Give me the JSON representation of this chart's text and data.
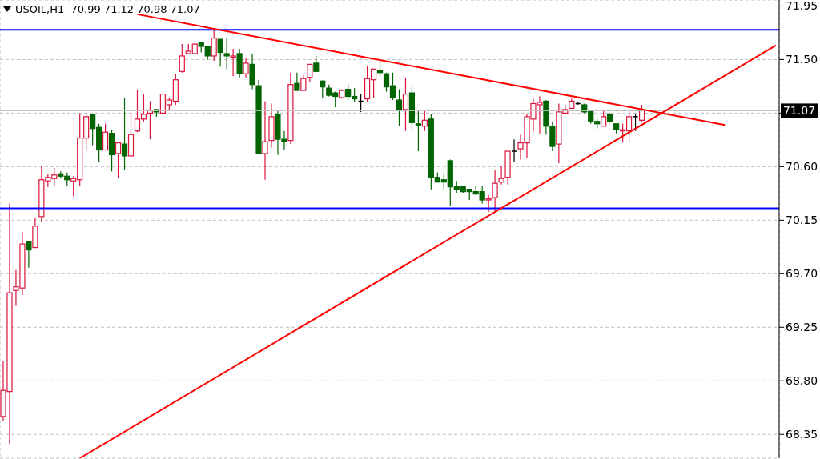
{
  "chart_data": {
    "type": "candlestick",
    "title": "USOIL,H1  70.99 71.12 70.98 71.07",
    "categories": [
      null,
      null,
      null,
      null,
      null,
      null,
      null,
      null,
      null,
      null,
      null,
      null,
      null,
      null,
      null,
      null,
      null,
      null,
      null,
      null,
      null,
      null,
      null,
      null,
      null,
      null,
      null,
      null,
      null,
      null,
      null,
      null,
      null,
      null,
      null,
      null,
      null,
      null,
      null,
      null,
      null,
      null,
      null,
      null,
      null,
      null,
      null,
      null,
      null,
      null,
      null,
      null,
      null,
      null,
      null,
      null,
      null,
      null,
      null,
      null,
      null,
      null,
      null,
      null,
      null,
      null,
      null,
      null,
      null,
      null,
      null,
      null,
      null,
      null,
      null,
      null,
      null,
      null,
      null,
      null,
      null,
      null,
      null,
      null,
      null,
      null,
      null,
      null,
      null,
      null,
      null,
      null,
      null,
      null,
      null,
      null,
      null,
      null,
      null,
      null,
      null,
      null,
      null,
      null,
      null,
      null,
      null,
      null,
      null,
      null,
      null,
      null,
      null,
      null,
      null,
      null,
      null,
      null,
      null,
      null,
      null,
      null
    ],
    "ohlc": [
      [
        68.5,
        68.97,
        68.46,
        68.72
      ],
      [
        68.71,
        70.29,
        68.27,
        69.54
      ],
      [
        69.56,
        69.73,
        69.43,
        69.59
      ],
      [
        69.58,
        70.05,
        69.52,
        69.95
      ],
      [
        69.97,
        69.97,
        69.75,
        69.9
      ],
      [
        69.92,
        70.17,
        69.92,
        70.1
      ],
      [
        70.18,
        70.6,
        70.14,
        70.49
      ],
      [
        70.48,
        70.54,
        70.43,
        70.51
      ],
      [
        70.5,
        70.59,
        70.44,
        70.53
      ],
      [
        70.54,
        70.56,
        70.5,
        70.52
      ],
      [
        70.52,
        70.55,
        70.44,
        70.49
      ],
      [
        70.48,
        70.52,
        70.35,
        70.5
      ],
      [
        70.49,
        71.05,
        70.44,
        70.84
      ],
      [
        70.84,
        71.04,
        70.74,
        71.02
      ],
      [
        71.04,
        71.04,
        70.78,
        70.92
      ],
      [
        70.93,
        70.96,
        70.64,
        70.74
      ],
      [
        70.74,
        70.96,
        70.74,
        70.89
      ],
      [
        70.88,
        70.91,
        70.56,
        70.7
      ],
      [
        70.71,
        70.81,
        70.5,
        70.8
      ],
      [
        70.79,
        71.18,
        70.57,
        70.69
      ],
      [
        70.69,
        71.04,
        70.69,
        70.87
      ],
      [
        70.9,
        71.25,
        70.89,
        71.0
      ],
      [
        71.0,
        71.21,
        70.98,
        71.04
      ],
      [
        71.05,
        71.15,
        70.83,
        71.07
      ],
      [
        71.08,
        71.08,
        71.02,
        71.06
      ],
      [
        71.05,
        71.22,
        71.05,
        71.21
      ],
      [
        71.12,
        71.18,
        71.08,
        71.16
      ],
      [
        71.15,
        71.38,
        71.12,
        71.33
      ],
      [
        71.4,
        71.63,
        71.39,
        71.53
      ],
      [
        71.55,
        71.63,
        71.55,
        71.57
      ],
      [
        71.55,
        71.64,
        71.55,
        71.63
      ],
      [
        71.64,
        71.65,
        71.56,
        71.61
      ],
      [
        71.61,
        71.61,
        71.5,
        71.53
      ],
      [
        71.53,
        71.76,
        71.49,
        71.68
      ],
      [
        71.67,
        71.67,
        71.44,
        71.56
      ],
      [
        71.55,
        71.68,
        71.42,
        71.53
      ],
      [
        71.52,
        71.59,
        71.36,
        71.53
      ],
      [
        71.55,
        71.59,
        71.35,
        71.38
      ],
      [
        71.38,
        71.51,
        71.35,
        71.47
      ],
      [
        71.46,
        71.55,
        71.25,
        71.29
      ],
      [
        71.28,
        71.33,
        70.71,
        70.71
      ],
      [
        70.71,
        71.15,
        70.49,
        70.81
      ],
      [
        70.82,
        71.13,
        70.76,
        71.02
      ],
      [
        71.04,
        71.07,
        70.7,
        70.83
      ],
      [
        70.83,
        70.9,
        70.74,
        70.81
      ],
      [
        70.82,
        71.39,
        70.79,
        71.29
      ],
      [
        71.3,
        71.39,
        71.24,
        71.24
      ],
      [
        71.24,
        71.37,
        71.24,
        71.34
      ],
      [
        71.35,
        71.46,
        71.31,
        71.46
      ],
      [
        71.47,
        71.53,
        71.4,
        71.4
      ],
      [
        71.32,
        71.32,
        71.18,
        71.27
      ],
      [
        71.26,
        71.29,
        71.19,
        71.2
      ],
      [
        71.22,
        71.23,
        71.1,
        71.19
      ],
      [
        71.18,
        71.25,
        71.17,
        71.24
      ],
      [
        71.25,
        71.29,
        71.16,
        71.19
      ],
      [
        71.19,
        71.26,
        71.14,
        71.17
      ],
      [
        71.15,
        71.21,
        71.06,
        71.15
      ],
      [
        71.17,
        71.45,
        71.14,
        71.34
      ],
      [
        71.33,
        71.42,
        71.18,
        71.42
      ],
      [
        71.41,
        71.5,
        71.36,
        71.39
      ],
      [
        71.38,
        71.39,
        71.23,
        71.27
      ],
      [
        71.28,
        71.39,
        71.16,
        71.18
      ],
      [
        71.16,
        71.25,
        70.94,
        71.07
      ],
      [
        71.08,
        71.35,
        70.9,
        71.21
      ],
      [
        71.22,
        71.27,
        70.9,
        70.97
      ],
      [
        70.96,
        71.07,
        70.73,
        70.95
      ],
      [
        70.94,
        71.07,
        70.9,
        70.99
      ],
      [
        71.0,
        71.04,
        70.41,
        70.51
      ],
      [
        70.51,
        70.55,
        70.47,
        70.47
      ],
      [
        70.49,
        70.54,
        70.41,
        70.47
      ],
      [
        70.65,
        70.66,
        70.27,
        70.43
      ],
      [
        70.43,
        70.48,
        70.38,
        70.41
      ],
      [
        70.43,
        70.43,
        70.38,
        70.39
      ],
      [
        70.41,
        70.41,
        70.32,
        70.39
      ],
      [
        70.39,
        70.44,
        70.36,
        70.37
      ],
      [
        70.39,
        70.44,
        70.29,
        70.32
      ],
      [
        70.32,
        70.36,
        70.22,
        70.33
      ],
      [
        70.34,
        70.57,
        70.22,
        70.46
      ],
      [
        70.47,
        70.61,
        70.45,
        70.5
      ],
      [
        70.51,
        70.73,
        70.45,
        70.73
      ],
      [
        70.73,
        70.83,
        70.64,
        70.73
      ],
      [
        70.75,
        70.87,
        70.66,
        70.8
      ],
      [
        70.8,
        71.04,
        70.67,
        71.02
      ],
      [
        71.0,
        71.17,
        70.9,
        71.13
      ],
      [
        71.12,
        71.19,
        70.88,
        71.14
      ],
      [
        71.15,
        71.16,
        70.87,
        70.94
      ],
      [
        70.94,
        70.98,
        70.73,
        70.77
      ],
      [
        70.79,
        71.13,
        70.63,
        71.06
      ],
      [
        71.05,
        71.12,
        71.04,
        71.08
      ],
      [
        71.09,
        71.17,
        71.09,
        71.15
      ],
      [
        71.13,
        71.14,
        71.12,
        71.13
      ],
      [
        71.12,
        71.13,
        71.05,
        71.06
      ],
      [
        71.07,
        71.07,
        70.96,
        70.98
      ],
      [
        70.98,
        71.0,
        70.92,
        70.96
      ],
      [
        70.94,
        71.07,
        70.94,
        71.02
      ],
      [
        71.04,
        71.05,
        70.97,
        70.98
      ],
      [
        70.96,
        70.96,
        70.88,
        70.91
      ],
      [
        70.9,
        70.96,
        70.81,
        70.91
      ],
      [
        70.9,
        71.08,
        70.8,
        71.02
      ],
      [
        71.02,
        71.04,
        70.9,
        71.02
      ],
      [
        70.99,
        71.12,
        70.98,
        71.07
      ],
      null,
      null,
      null,
      null,
      null,
      null,
      null,
      null,
      null,
      null,
      null,
      null,
      null,
      null,
      null,
      null,
      null,
      null,
      null,
      null,
      null
    ],
    "colors": [
      "#dc143c",
      "#dc143c",
      "#dc143c",
      "#dc143c",
      "#006400",
      "#dc143c",
      "#dc143c",
      "#dc143c",
      "#dc143c",
      "#006400",
      "#006400",
      "#dc143c",
      "#dc143c",
      "#dc143c",
      "#006400",
      "#006400",
      "#dc143c",
      "#006400",
      "#dc143c",
      "#006400",
      "#dc143c",
      "#dc143c",
      "#dc143c",
      "#dc143c",
      "#006400",
      "#dc143c",
      "#dc143c",
      "#dc143c",
      "#dc143c",
      "#dc143c",
      "#dc143c",
      "#006400",
      "#006400",
      "#dc143c",
      "#006400",
      "#006400",
      "#dc143c",
      "#006400",
      "#dc143c",
      "#006400",
      "#006400",
      "#dc143c",
      "#dc143c",
      "#006400",
      "#006400",
      "#dc143c",
      "#006400",
      "#dc143c",
      "#dc143c",
      "#006400",
      "#006400",
      "#006400",
      "#006400",
      "#dc143c",
      "#006400",
      "#006400",
      "#000000",
      "#dc143c",
      "#dc143c",
      "#006400",
      "#006400",
      "#006400",
      "#006400",
      "#dc143c",
      "#006400",
      "#006400",
      "#dc143c",
      "#006400",
      "#006400",
      "#006400",
      "#006400",
      "#006400",
      "#006400",
      "#006400",
      "#006400",
      "#006400",
      "#dc143c",
      "#dc143c",
      "#dc143c",
      "#dc143c",
      "#000000",
      "#dc143c",
      "#dc143c",
      "#dc143c",
      "#dc143c",
      "#006400",
      "#006400",
      "#dc143c",
      "#dc143c",
      "#dc143c",
      "#000000",
      "#006400",
      "#006400",
      "#006400",
      "#dc143c",
      "#006400",
      "#006400",
      "#dc143c",
      "#dc143c",
      "#000000",
      "#dc143c",
      null,
      null,
      null,
      null,
      null,
      null,
      null,
      null,
      null,
      null,
      null,
      null,
      null,
      null,
      null,
      null,
      null,
      null,
      null,
      null,
      null
    ],
    "series": [
      {
        "type": "line",
        "color": "#ff0000",
        "values": [
          null,
          null,
          null,
          null,
          null,
          null,
          null,
          null,
          null,
          null,
          null,
          null,
          68.15,
          null,
          null,
          null,
          null,
          null,
          null,
          null,
          null,
          null,
          null,
          null,
          null,
          null,
          null,
          null,
          null,
          null,
          null,
          null,
          null,
          null,
          null,
          null,
          null,
          null,
          null,
          null,
          null,
          null,
          null,
          null,
          null,
          null,
          null,
          null,
          null,
          null,
          null,
          null,
          null,
          null,
          null,
          null,
          null,
          null,
          null,
          null,
          null,
          null,
          null,
          null,
          null,
          null,
          null,
          null,
          null,
          null,
          null,
          null,
          null,
          null,
          null,
          null,
          null,
          null,
          null,
          null,
          null,
          null,
          null,
          null,
          null,
          null,
          null,
          null,
          null,
          null,
          null,
          null,
          null,
          null,
          null,
          null,
          null,
          null,
          null,
          null,
          null,
          null,
          null,
          null,
          null,
          null,
          null,
          null,
          null,
          null,
          null,
          null,
          null,
          null,
          null,
          null,
          null,
          null,
          null,
          null,
          null,
          71.62
        ]
      },
      {
        "type": "line",
        "color": "#ff0000",
        "values": [
          null,
          null,
          null,
          null,
          null,
          null,
          null,
          null,
          null,
          null,
          null,
          null,
          null,
          null,
          null,
          null,
          null,
          null,
          null,
          null,
          null,
          71.88,
          null,
          null,
          null,
          null,
          null,
          null,
          null,
          null,
          null,
          null,
          null,
          null,
          null,
          null,
          null,
          null,
          null,
          null,
          null,
          null,
          null,
          null,
          null,
          null,
          null,
          null,
          null,
          null,
          null,
          null,
          null,
          null,
          null,
          null,
          null,
          null,
          null,
          null,
          null,
          null,
          null,
          null,
          null,
          null,
          null,
          null,
          null,
          null,
          null,
          null,
          null,
          null,
          null,
          null,
          null,
          null,
          null,
          null,
          null,
          null,
          null,
          null,
          null,
          null,
          null,
          null,
          null,
          null,
          null,
          null,
          null,
          null,
          null,
          null,
          null,
          null,
          null,
          null,
          null,
          null,
          null,
          null,
          null,
          null,
          null,
          null,
          null,
          null,
          null,
          null,
          null,
          70.95,
          null,
          null,
          null,
          null,
          null,
          null,
          null,
          null
        ]
      }
    ],
    "ref_lines": [
      {
        "axis": "y",
        "value": 71.75,
        "color": "#0000ff"
      },
      {
        "axis": "y",
        "value": 70.25,
        "color": "#0000ff"
      },
      {
        "axis": "y",
        "value": 71.07,
        "label": "71.07",
        "color": "#c0c0c0"
      }
    ],
    "ylim": [
      68.15,
      72.0
    ],
    "yticks": [
      68.35,
      {
        "value": 68.8,
        "label": "68.80"
      },
      69.25,
      {
        "value": 69.7,
        "label": "69.70"
      },
      70.15,
      {
        "value": 70.6,
        "label": "70.60"
      },
      {
        "value": 71.05,
        "label": null
      },
      {
        "value": 71.5,
        "label": "71.50"
      },
      71.95
    ],
    "grid": true,
    "tick_labels": "y"
  }
}
